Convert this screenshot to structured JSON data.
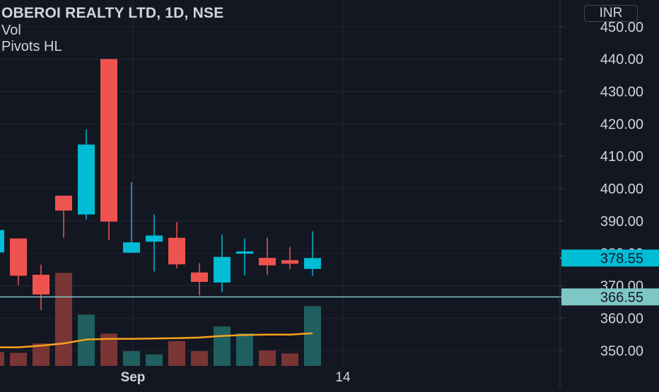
{
  "header": {
    "title": "OBEROI REALTY LTD, 1D, NSE",
    "indicators": [
      "Vol",
      "Pivots HL"
    ],
    "currency": "INR"
  },
  "colors": {
    "background": "#131722",
    "up": "#00bcd4",
    "down": "#ef5350",
    "volume_up": "#1f5f5f",
    "volume_down": "#7a3535",
    "volume_ma": "#f7a21b",
    "pivot_line": "#7fc7c7",
    "grid": "#232632",
    "axis_text": "#d1d4dc"
  },
  "chart_data": {
    "type": "candlestick",
    "title": "OBEROI REALTY LTD, 1D, NSE",
    "y_ticks": [
      "450.00",
      "440.00",
      "430.00",
      "420.00",
      "410.00",
      "400.00",
      "390.00",
      "380.00",
      "370.00",
      "360.00",
      "350.00"
    ],
    "x_ticks": [
      "Sep",
      "14"
    ],
    "candles": [
      {
        "open": 380.3,
        "high": 387.2,
        "low": 373.0,
        "close": 387.2
      },
      {
        "open": 384.6,
        "high": 384.6,
        "low": 370.2,
        "close": 373.1
      },
      {
        "open": 373.4,
        "high": 376.5,
        "low": 362.5,
        "close": 367.3
      },
      {
        "open": 397.8,
        "high": 397.8,
        "low": 384.8,
        "close": 393.2
      },
      {
        "open": 392.0,
        "high": 418.3,
        "low": 390.5,
        "close": 413.6
      },
      {
        "open": 440.0,
        "high": 440.0,
        "low": 384.0,
        "close": 389.8
      },
      {
        "open": 380.2,
        "high": 402.0,
        "low": 380.2,
        "close": 383.4
      },
      {
        "open": 383.6,
        "high": 392.0,
        "low": 374.4,
        "close": 385.5
      },
      {
        "open": 384.8,
        "high": 389.6,
        "low": 375.4,
        "close": 376.6
      },
      {
        "open": 374.1,
        "high": 377.0,
        "low": 367.0,
        "close": 371.2
      },
      {
        "open": 371.0,
        "high": 385.8,
        "low": 368.0,
        "close": 378.9
      },
      {
        "open": 379.9,
        "high": 384.6,
        "low": 373.2,
        "close": 380.6
      },
      {
        "open": 378.6,
        "high": 384.8,
        "low": 373.3,
        "close": 376.3
      },
      {
        "open": 377.9,
        "high": 382.0,
        "low": 375.1,
        "close": 376.8
      },
      {
        "open": 375.2,
        "high": 386.8,
        "low": 373.1,
        "close": 378.55
      }
    ],
    "volume": [
      {
        "value": 349.5,
        "dir": "down"
      },
      {
        "value": 349.3,
        "dir": "down"
      },
      {
        "value": 352.2,
        "dir": "down"
      },
      {
        "value": 374.0,
        "dir": "down"
      },
      {
        "value": 361.1,
        "dir": "up"
      },
      {
        "value": 355.2,
        "dir": "down"
      },
      {
        "value": 349.8,
        "dir": "up"
      },
      {
        "value": 348.8,
        "dir": "up"
      },
      {
        "value": 352.9,
        "dir": "down"
      },
      {
        "value": 349.8,
        "dir": "down"
      },
      {
        "value": 357.4,
        "dir": "up"
      },
      {
        "value": 355.3,
        "dir": "up"
      },
      {
        "value": 350.0,
        "dir": "down"
      },
      {
        "value": 349.1,
        "dir": "down"
      },
      {
        "value": 363.7,
        "dir": "up"
      }
    ],
    "volume_ma": [
      351.0,
      351.0,
      351.5,
      352.2,
      353.4,
      353.6,
      353.6,
      353.7,
      353.8,
      354.0,
      354.5,
      354.8,
      354.9,
      354.9,
      355.3
    ],
    "last_price": {
      "value": 378.55,
      "label": "378.55"
    },
    "pivot_line": {
      "value": 366.55,
      "label": "366.55"
    }
  }
}
